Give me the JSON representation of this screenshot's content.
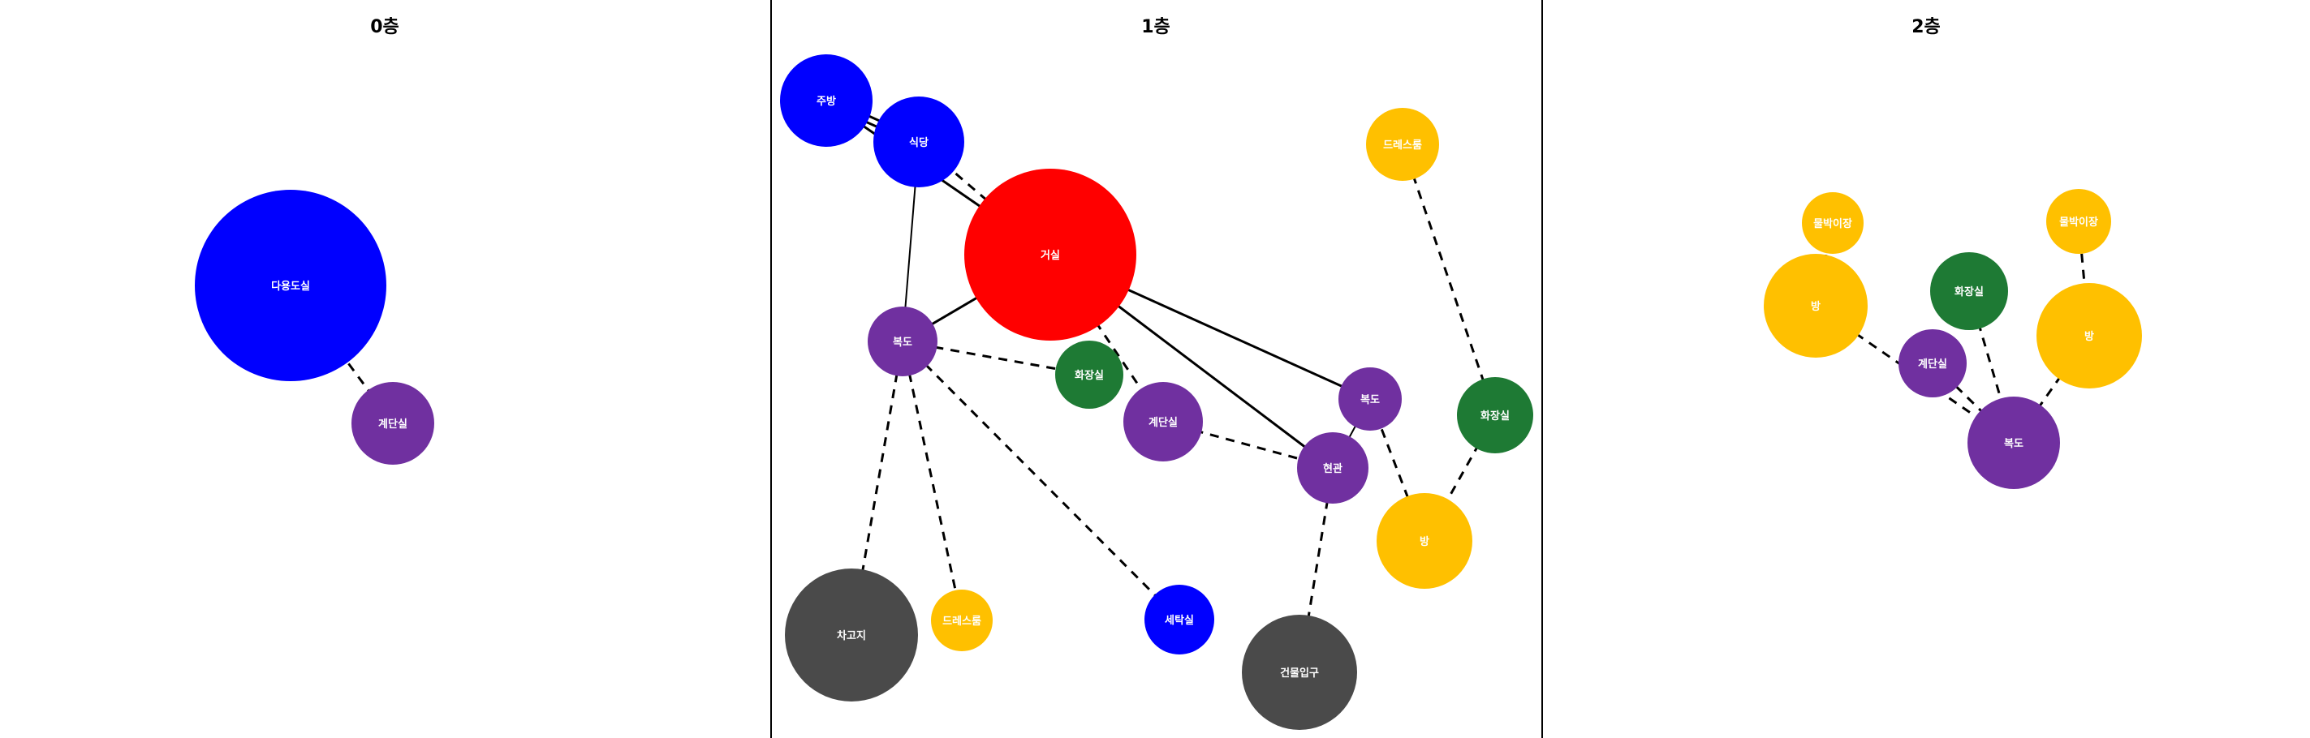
{
  "colors": {
    "blue": "#0000ff",
    "purple": "#7030a0",
    "red": "#ff0000",
    "green": "#1e7a34",
    "yellow": "#ffc000",
    "gray": "#4a4a4a"
  },
  "panels": [
    {
      "title": "0층",
      "nodes": [
        {
          "id": "f0-multi",
          "label": "다용도실",
          "color": "blue"
        },
        {
          "id": "f0-stairs",
          "label": "계단실",
          "color": "purple"
        }
      ],
      "edges": [
        {
          "from": "f0-multi",
          "to": "f0-stairs",
          "style": "dashed"
        }
      ]
    },
    {
      "title": "1층",
      "nodes": [
        {
          "id": "f1-kitchen",
          "label": "주방",
          "color": "blue"
        },
        {
          "id": "f1-dining",
          "label": "식당",
          "color": "blue"
        },
        {
          "id": "f1-living",
          "label": "거실",
          "color": "red"
        },
        {
          "id": "f1-hall-left",
          "label": "복도",
          "color": "purple"
        },
        {
          "id": "f1-toilet-center",
          "label": "화장실",
          "color": "green"
        },
        {
          "id": "f1-stairs",
          "label": "계단실",
          "color": "purple"
        },
        {
          "id": "f1-dressroom-top",
          "label": "드레스룸",
          "color": "yellow"
        },
        {
          "id": "f1-hall-right",
          "label": "복도",
          "color": "purple"
        },
        {
          "id": "f1-toilet-right",
          "label": "화장실",
          "color": "green"
        },
        {
          "id": "f1-entrance",
          "label": "현관",
          "color": "purple"
        },
        {
          "id": "f1-room",
          "label": "방",
          "color": "yellow"
        },
        {
          "id": "f1-garage",
          "label": "차고지",
          "color": "gray"
        },
        {
          "id": "f1-dressroom-bottom",
          "label": "드레스룸",
          "color": "yellow"
        },
        {
          "id": "f1-laundry",
          "label": "세탁실",
          "color": "blue"
        },
        {
          "id": "f1-building-entry",
          "label": "건물입구",
          "color": "gray"
        }
      ],
      "edges": [
        {
          "from": "f1-kitchen",
          "to": "f1-dining",
          "style": "double"
        },
        {
          "from": "f1-kitchen",
          "to": "f1-living",
          "style": "solid"
        },
        {
          "from": "f1-dining",
          "to": "f1-living",
          "style": "dashed"
        },
        {
          "from": "f1-dining",
          "to": "f1-hall-left",
          "style": "thin"
        },
        {
          "from": "f1-living",
          "to": "f1-hall-left",
          "style": "solid"
        },
        {
          "from": "f1-living",
          "to": "f1-stairs",
          "style": "dashed"
        },
        {
          "from": "f1-living",
          "to": "f1-hall-right",
          "style": "solid"
        },
        {
          "from": "f1-living",
          "to": "f1-entrance",
          "style": "solid"
        },
        {
          "from": "f1-hall-left",
          "to": "f1-toilet-center",
          "style": "dashed"
        },
        {
          "from": "f1-hall-left",
          "to": "f1-garage",
          "style": "dashed"
        },
        {
          "from": "f1-hall-left",
          "to": "f1-dressroom-bottom",
          "style": "dashed"
        },
        {
          "from": "f1-hall-left",
          "to": "f1-laundry",
          "style": "dashed"
        },
        {
          "from": "f1-stairs",
          "to": "f1-entrance",
          "style": "dashed"
        },
        {
          "from": "f1-hall-right",
          "to": "f1-entrance",
          "style": "thin"
        },
        {
          "from": "f1-hall-right",
          "to": "f1-room",
          "style": "dashed"
        },
        {
          "from": "f1-dressroom-top",
          "to": "f1-toilet-right",
          "style": "dashed"
        },
        {
          "from": "f1-toilet-right",
          "to": "f1-room",
          "style": "dashed"
        },
        {
          "from": "f1-entrance",
          "to": "f1-building-entry",
          "style": "dashed"
        }
      ]
    },
    {
      "title": "2층",
      "nodes": [
        {
          "id": "f2-attic-left",
          "label": "물박이장",
          "color": "yellow"
        },
        {
          "id": "f2-room-left",
          "label": "방",
          "color": "yellow"
        },
        {
          "id": "f2-toilet",
          "label": "화장실",
          "color": "green"
        },
        {
          "id": "f2-attic-right",
          "label": "물박이장",
          "color": "yellow"
        },
        {
          "id": "f2-room-right",
          "label": "방",
          "color": "yellow"
        },
        {
          "id": "f2-stairs",
          "label": "계단실",
          "color": "purple"
        },
        {
          "id": "f2-hall",
          "label": "복도",
          "color": "purple"
        }
      ],
      "edges": [
        {
          "from": "f2-attic-left",
          "to": "f2-room-left",
          "style": "dashed"
        },
        {
          "from": "f2-room-left",
          "to": "f2-hall",
          "style": "dashed"
        },
        {
          "from": "f2-toilet",
          "to": "f2-hall",
          "style": "dashed"
        },
        {
          "from": "f2-stairs",
          "to": "f2-hall",
          "style": "dashed"
        },
        {
          "from": "f2-attic-right",
          "to": "f2-room-right",
          "style": "dashed"
        },
        {
          "from": "f2-room-right",
          "to": "f2-hall",
          "style": "dashed"
        }
      ]
    }
  ]
}
